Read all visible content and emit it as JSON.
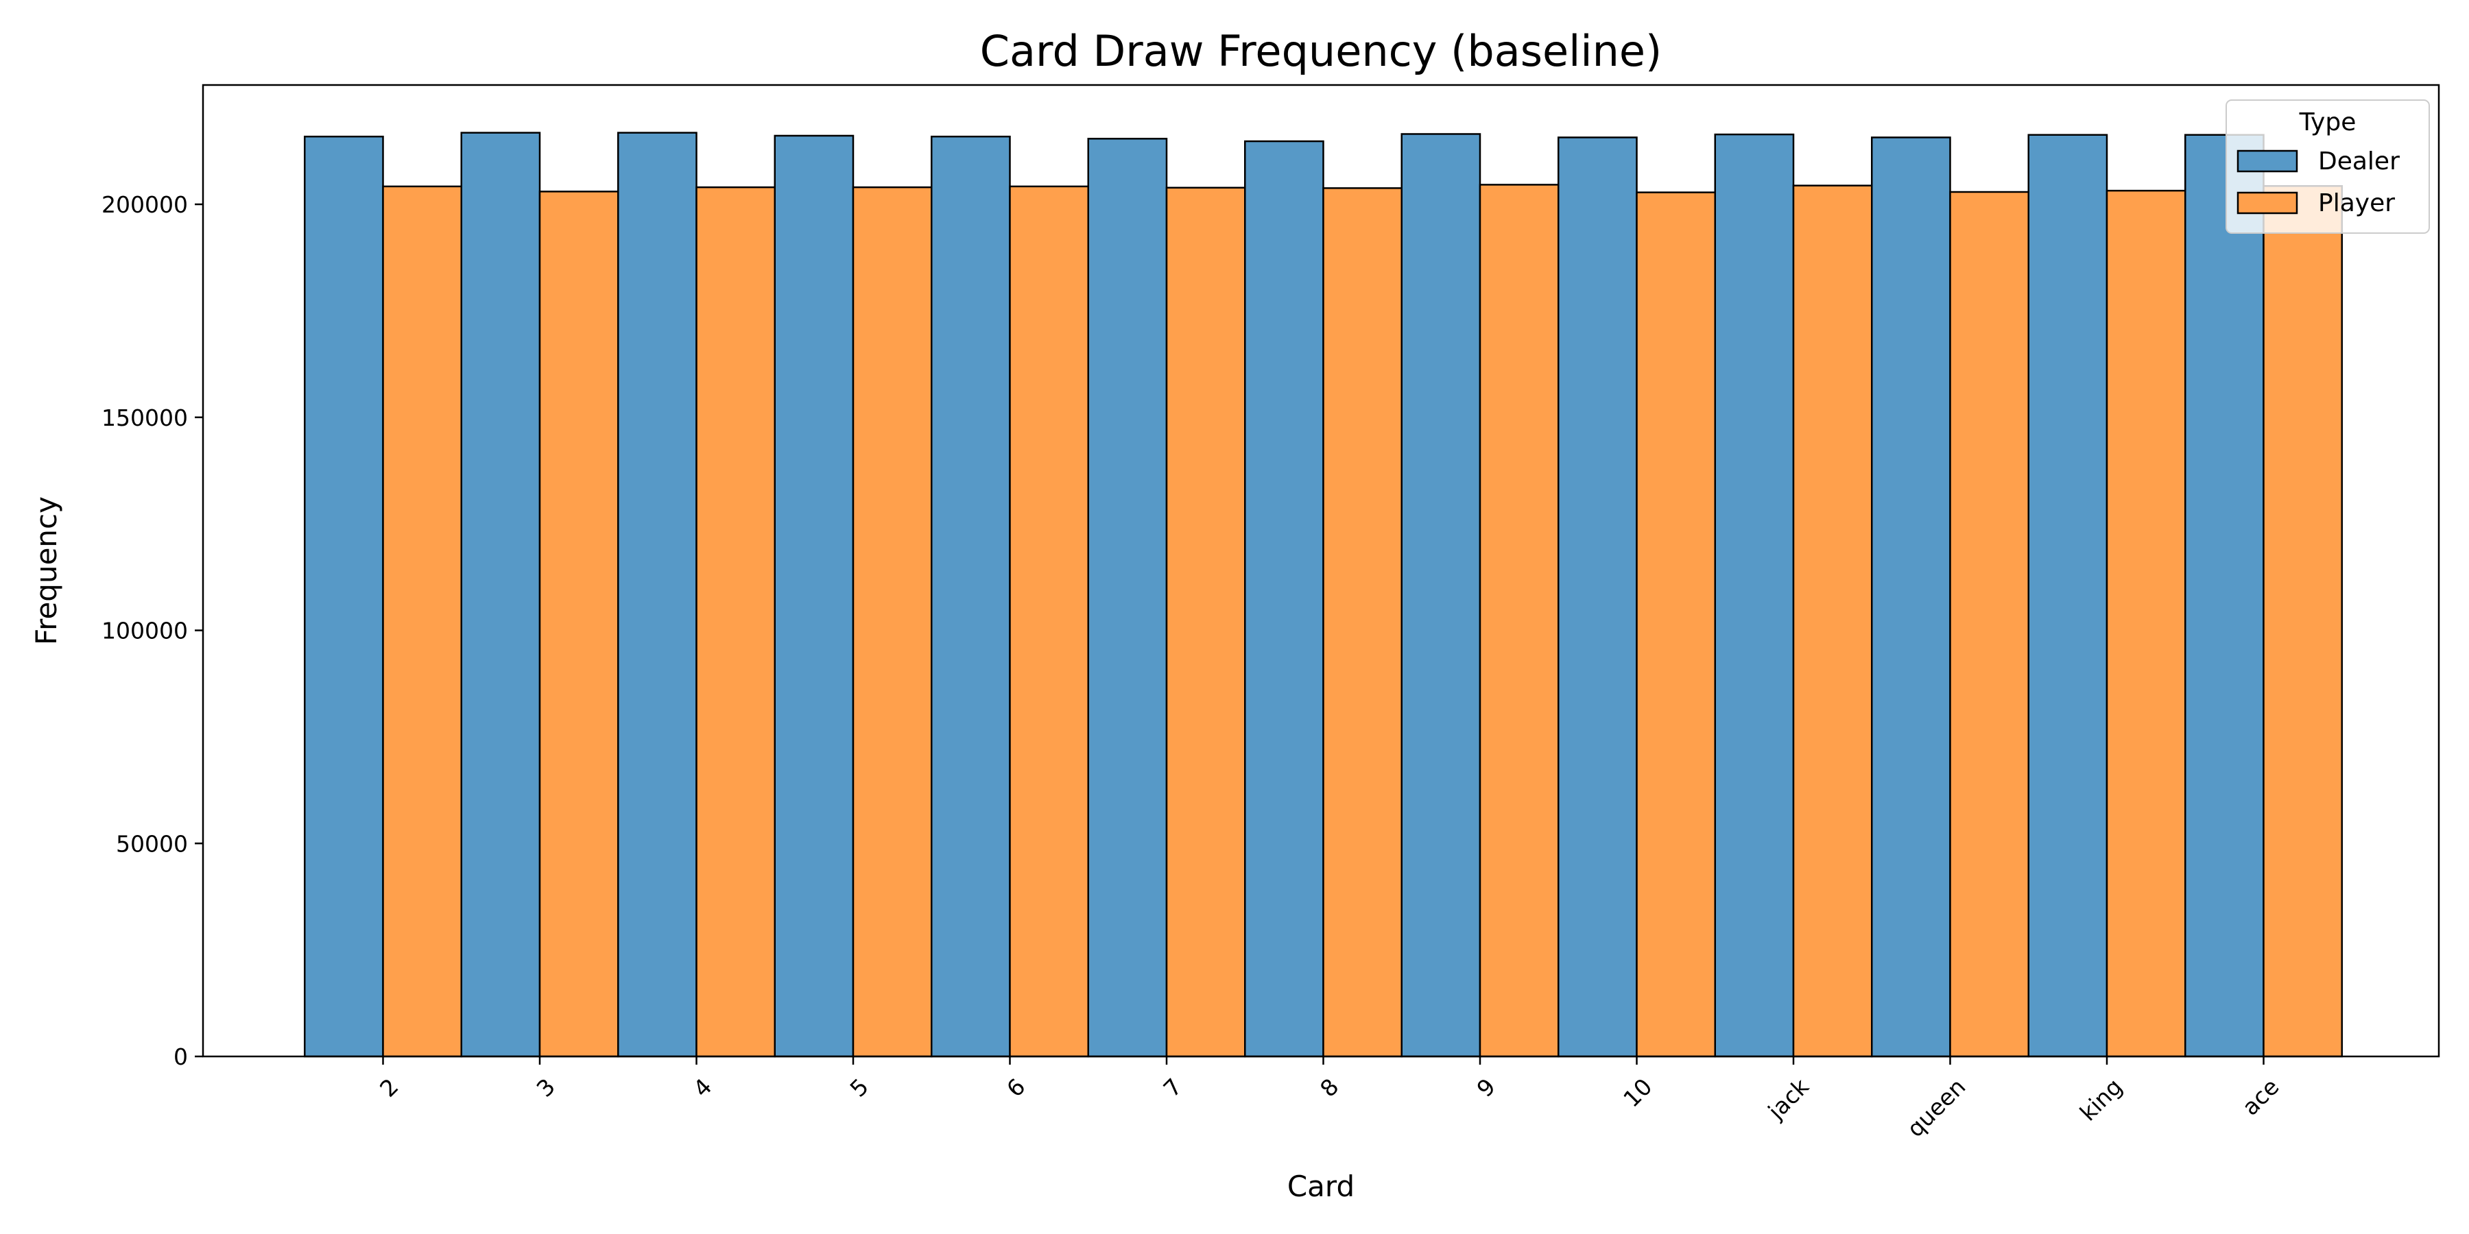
{
  "chart_data": {
    "type": "bar",
    "title": "Card Draw Frequency (baseline)",
    "xlabel": "Card",
    "ylabel": "Frequency",
    "categories": [
      "2",
      "3",
      "4",
      "5",
      "6",
      "7",
      "8",
      "9",
      "10",
      "jack",
      "queen",
      "king",
      "ace"
    ],
    "series": [
      {
        "name": "Dealer",
        "color": "#5799c7",
        "values": [
          215900,
          216800,
          216800,
          216100,
          215900,
          215400,
          214800,
          216500,
          215700,
          216400,
          215700,
          216300,
          216300
        ]
      },
      {
        "name": "Player",
        "color": "#ffa04c",
        "values": [
          204200,
          203000,
          204000,
          204000,
          204200,
          203900,
          203800,
          204600,
          202800,
          204400,
          202900,
          203200,
          204300
        ]
      }
    ],
    "ylim": [
      0,
      228000
    ],
    "yticks": [
      0,
      50000,
      100000,
      150000,
      200000
    ],
    "grid": false,
    "legend": {
      "title": "Type",
      "placement": "top-right"
    }
  }
}
